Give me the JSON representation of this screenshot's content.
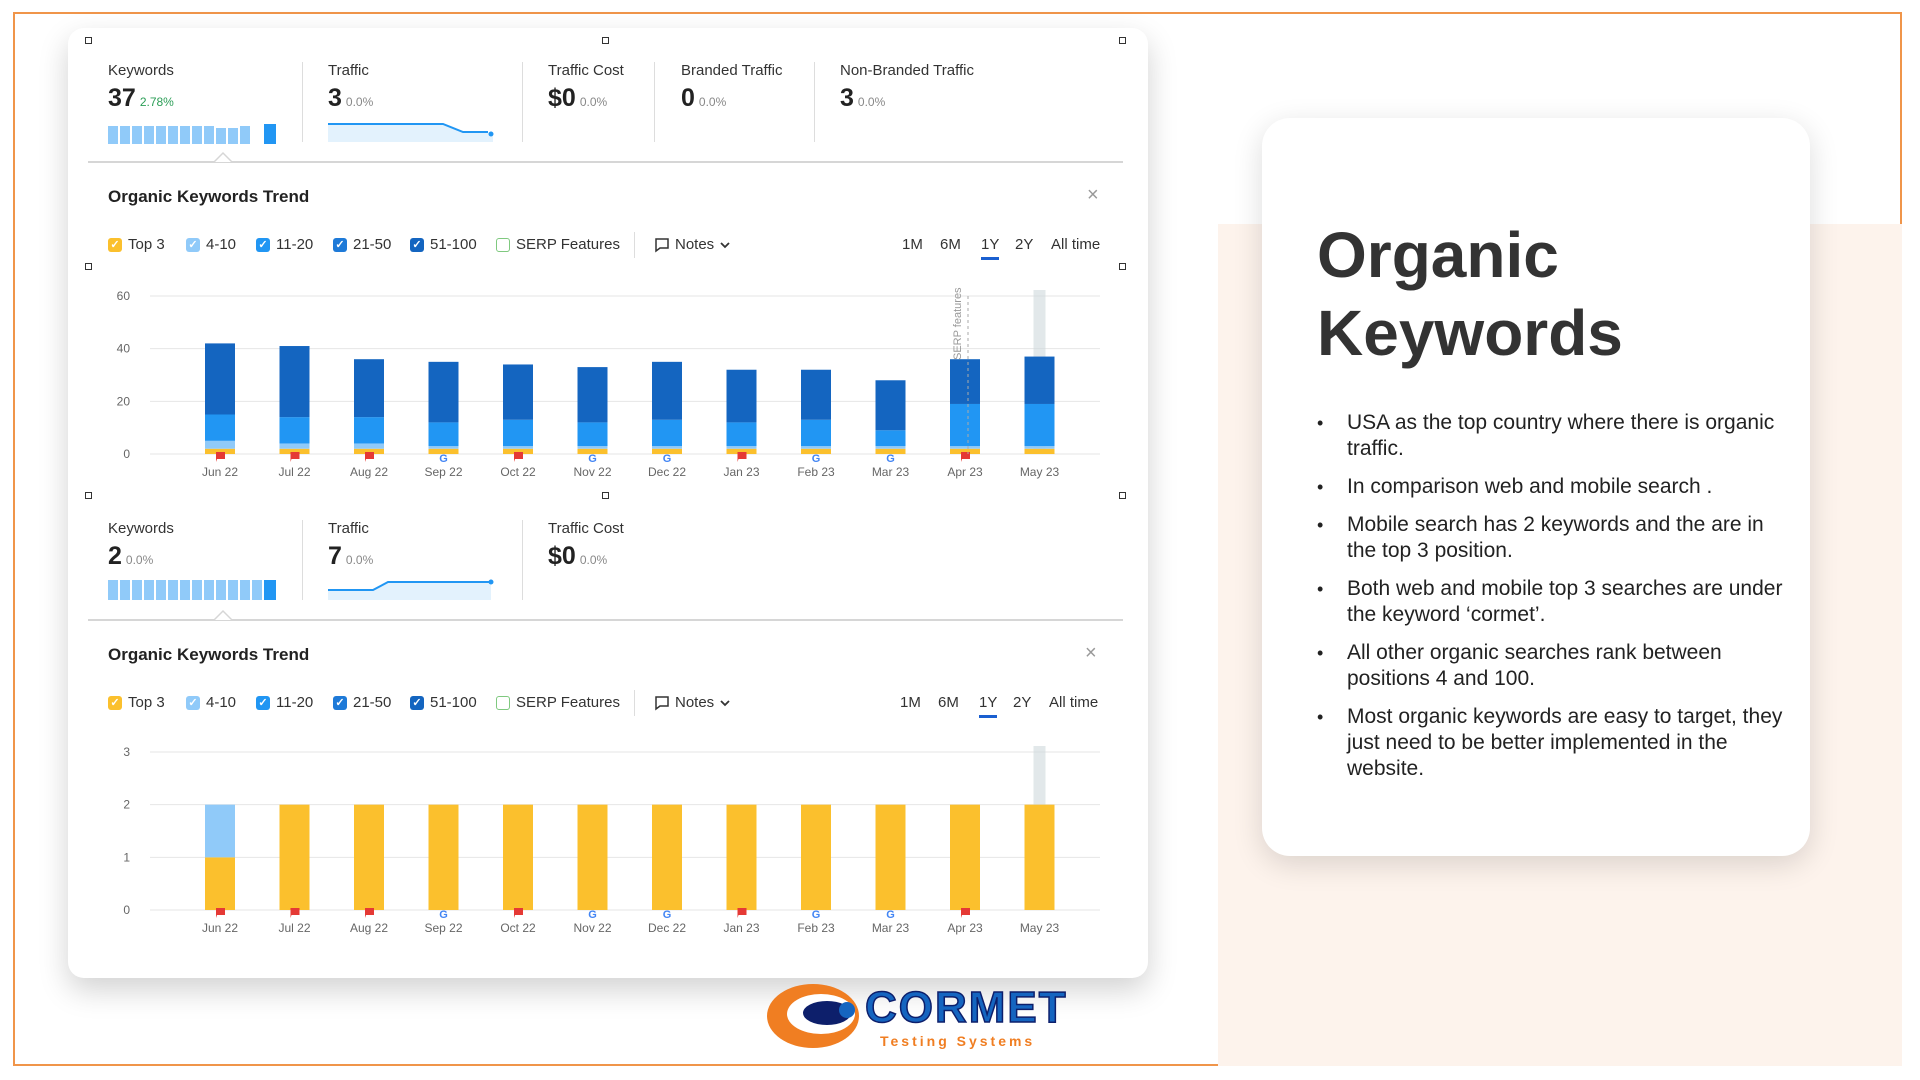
{
  "colors": {
    "top3": "#fbc02d",
    "r4_10": "#90caf9",
    "r11_20": "#2196f3",
    "r21_50": "#1e7ad8",
    "r51_100": "#1465c0",
    "accent": "#1a5fd0",
    "frame": "#f0954a"
  },
  "panel1": {
    "stats": [
      {
        "label": "Keywords",
        "value": "37",
        "pct": "2.78%"
      },
      {
        "label": "Traffic",
        "value": "3",
        "pct": "0.0%"
      },
      {
        "label": "Traffic Cost",
        "value": "$0",
        "pct": "0.0%"
      },
      {
        "label": "Branded Traffic",
        "value": "0",
        "pct": "0.0%"
      },
      {
        "label": "Non-Branded Traffic",
        "value": "3",
        "pct": "0.0%"
      }
    ],
    "trend_title": "Organic Keywords Trend",
    "filters": [
      "Top 3",
      "4-10",
      "11-20",
      "21-50",
      "51-100",
      "SERP Features",
      "Notes"
    ],
    "periods": [
      "1M",
      "6M",
      "1Y",
      "2Y",
      "All time"
    ],
    "annotation": "SERP features"
  },
  "panel2": {
    "stats": [
      {
        "label": "Keywords",
        "value": "2",
        "pct": "0.0%"
      },
      {
        "label": "Traffic",
        "value": "7",
        "pct": "0.0%"
      },
      {
        "label": "Traffic Cost",
        "value": "$0",
        "pct": "0.0%"
      }
    ],
    "trend_title": "Organic Keywords Trend",
    "filters": [
      "Top 3",
      "4-10",
      "11-20",
      "21-50",
      "51-100",
      "SERP Features",
      "Notes"
    ],
    "periods": [
      "1M",
      "6M",
      "1Y",
      "2Y",
      "All time"
    ]
  },
  "chart_data": [
    {
      "type": "bar",
      "stacked": true,
      "categories": [
        "Jun 22",
        "Jul 22",
        "Aug 22",
        "Sep 22",
        "Oct 22",
        "Nov 22",
        "Dec 22",
        "Jan 23",
        "Feb 23",
        "Mar 23",
        "Apr 23",
        "May 23"
      ],
      "ylim": [
        0,
        60
      ],
      "yticks": [
        0,
        20,
        40,
        60
      ],
      "grid": true,
      "markers": [
        "flag",
        "flag",
        "flag",
        "google",
        "flag",
        "google",
        "google",
        "flag",
        "google",
        "google",
        "flag",
        "none"
      ],
      "series": [
        {
          "name": "Top 3",
          "color": "#fbc02d",
          "values": [
            2,
            2,
            2,
            2,
            2,
            2,
            2,
            2,
            2,
            2,
            2,
            2
          ]
        },
        {
          "name": "4-10",
          "color": "#90caf9",
          "values": [
            3,
            2,
            2,
            1,
            1,
            1,
            1,
            1,
            1,
            1,
            1,
            1
          ]
        },
        {
          "name": "11-20",
          "color": "#2196f3",
          "values": [
            10,
            10,
            10,
            9,
            10,
            9,
            10,
            9,
            10,
            6,
            16,
            16
          ]
        },
        {
          "name": "51-100",
          "color": "#1465c0",
          "values": [
            27,
            27,
            22,
            23,
            21,
            21,
            22,
            20,
            19,
            19,
            17,
            18
          ]
        }
      ]
    },
    {
      "type": "bar",
      "stacked": true,
      "categories": [
        "Jun 22",
        "Jul 22",
        "Aug 22",
        "Sep 22",
        "Oct 22",
        "Nov 22",
        "Dec 22",
        "Jan 23",
        "Feb 23",
        "Mar 23",
        "Apr 23",
        "May 23"
      ],
      "ylim": [
        0,
        3
      ],
      "yticks": [
        0,
        1,
        2,
        3
      ],
      "grid": true,
      "markers": [
        "flag",
        "flag",
        "flag",
        "google",
        "flag",
        "google",
        "google",
        "flag",
        "google",
        "google",
        "flag",
        "none"
      ],
      "series": [
        {
          "name": "Top 3",
          "color": "#fbc02d",
          "values": [
            1,
            2,
            2,
            2,
            2,
            2,
            2,
            2,
            2,
            2,
            2,
            2
          ]
        },
        {
          "name": "4-10",
          "color": "#90caf9",
          "values": [
            1,
            0,
            0,
            0,
            0,
            0,
            0,
            0,
            0,
            0,
            0,
            0
          ]
        }
      ]
    }
  ],
  "card": {
    "title_line1": "Organic",
    "title_line2": "Keywords",
    "bullets": [
      "USA as the top country where there is organic traffic.",
      "In comparison web and mobile search .",
      "Mobile search has 2 keywords and the are in the top 3 position.",
      "Both web and mobile top 3 searches are under the keyword ‘cormet’.",
      "All other organic searches rank between positions 4 and 100.",
      "Most organic keywords are easy to target, they just need to be better implemented in the website."
    ]
  },
  "logo": {
    "name": "CORMET",
    "tagline": "Testing Systems"
  }
}
